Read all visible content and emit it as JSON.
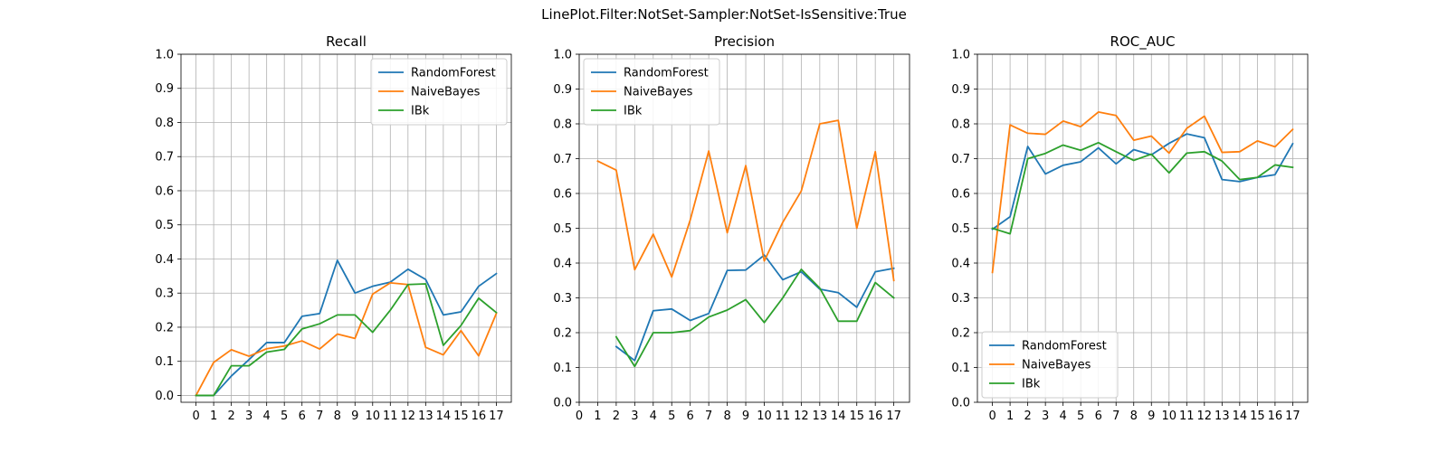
{
  "figure": {
    "suptitle": "LinePlot.Filter:NotSet-Sampler:NotSet-IsSensitive:True"
  },
  "colors": {
    "RandomForest": "#1f77b4",
    "NaiveBayes": "#ff7f0e",
    "IBk": "#2ca02c"
  },
  "chart_data": [
    {
      "type": "line",
      "title": "Recall",
      "xlabel": "",
      "ylabel": "",
      "xlim": [
        -0.85,
        17.85
      ],
      "ylim": [
        -0.02,
        1.0
      ],
      "xticks": [
        0,
        1,
        2,
        3,
        4,
        5,
        6,
        7,
        8,
        9,
        10,
        11,
        12,
        13,
        14,
        15,
        16,
        17
      ],
      "yticks": [
        0.0,
        0.1,
        0.2,
        0.3,
        0.4,
        0.5,
        0.6,
        0.7,
        0.8,
        0.9,
        1.0
      ],
      "ytick_labels": [
        "0.0",
        "0.1",
        "0.2",
        "0.3",
        "0.4",
        "0.5",
        "0.6",
        "0.7",
        "0.8",
        "0.9",
        "1.0"
      ],
      "grid": true,
      "legend": "upper-right",
      "x": [
        0,
        1,
        2,
        3,
        4,
        5,
        6,
        7,
        8,
        9,
        10,
        11,
        12,
        13,
        14,
        15,
        16,
        17
      ],
      "series": [
        {
          "name": "RandomForest",
          "values": [
            0.0,
            0.0,
            0.057,
            0.105,
            0.155,
            0.155,
            0.232,
            0.24,
            0.396,
            0.3,
            0.32,
            0.332,
            0.37,
            0.34,
            0.236,
            0.245,
            0.32,
            0.357
          ]
        },
        {
          "name": "NaiveBayes",
          "values": [
            0.0,
            0.097,
            0.134,
            0.115,
            0.137,
            0.145,
            0.16,
            0.136,
            0.18,
            0.167,
            0.297,
            0.33,
            0.325,
            0.141,
            0.119,
            0.19,
            0.116,
            0.24
          ]
        },
        {
          "name": "IBk",
          "values": [
            0.0,
            0.0,
            0.087,
            0.087,
            0.127,
            0.135,
            0.195,
            0.21,
            0.236,
            0.236,
            0.185,
            0.25,
            0.325,
            0.327,
            0.147,
            0.205,
            0.285,
            0.243
          ]
        }
      ]
    },
    {
      "type": "line",
      "title": "Precision",
      "xlabel": "",
      "ylabel": "",
      "xlim": [
        0,
        17.85
      ],
      "ylim": [
        0.0,
        1.0
      ],
      "xticks": [
        0,
        1,
        2,
        3,
        4,
        5,
        6,
        7,
        8,
        9,
        10,
        11,
        12,
        13,
        14,
        15,
        16,
        17
      ],
      "yticks": [
        0.0,
        0.1,
        0.2,
        0.3,
        0.4,
        0.5,
        0.6,
        0.7,
        0.8,
        0.9,
        1.0
      ],
      "ytick_labels": [
        "0.0",
        "0.1",
        "0.2",
        "0.3",
        "0.4",
        "0.5",
        "0.6",
        "0.7",
        "0.8",
        "0.9",
        "1.0"
      ],
      "grid": true,
      "legend": "upper-left",
      "x": [
        0,
        1,
        2,
        3,
        4,
        5,
        6,
        7,
        8,
        9,
        10,
        11,
        12,
        13,
        14,
        15,
        16,
        17
      ],
      "series": [
        {
          "name": "RandomForest",
          "values": [
            null,
            null,
            0.16,
            0.12,
            0.263,
            0.268,
            0.235,
            0.255,
            0.379,
            0.38,
            0.423,
            0.352,
            0.375,
            0.325,
            0.315,
            0.273,
            0.375,
            0.385
          ]
        },
        {
          "name": "NaiveBayes",
          "values": [
            null,
            0.693,
            0.667,
            0.381,
            0.483,
            0.36,
            0.524,
            0.722,
            0.487,
            0.68,
            0.406,
            0.517,
            0.607,
            0.8,
            0.81,
            0.5,
            0.72,
            0.35
          ]
        },
        {
          "name": "IBk",
          "values": [
            null,
            null,
            0.188,
            0.103,
            0.2,
            0.2,
            0.206,
            0.245,
            0.265,
            0.295,
            0.229,
            0.3,
            0.382,
            0.328,
            0.233,
            0.233,
            0.344,
            0.3
          ]
        }
      ]
    },
    {
      "type": "line",
      "title": "ROC_AUC",
      "xlabel": "",
      "ylabel": "",
      "xlim": [
        -0.85,
        17.85
      ],
      "ylim": [
        0.0,
        1.0
      ],
      "xticks": [
        0,
        1,
        2,
        3,
        4,
        5,
        6,
        7,
        8,
        9,
        10,
        11,
        12,
        13,
        14,
        15,
        16,
        17
      ],
      "yticks": [
        0.0,
        0.1,
        0.2,
        0.3,
        0.4,
        0.5,
        0.6,
        0.7,
        0.8,
        0.9,
        1.0
      ],
      "ytick_labels": [
        "0.0",
        "0.1",
        "0.2",
        "0.3",
        "0.4",
        "0.5",
        "0.6",
        "0.7",
        "0.8",
        "0.9",
        "1.0"
      ],
      "grid": true,
      "legend": "lower-left",
      "x": [
        0,
        1,
        2,
        3,
        4,
        5,
        6,
        7,
        8,
        9,
        10,
        11,
        12,
        13,
        14,
        15,
        16,
        17
      ],
      "series": [
        {
          "name": "RandomForest",
          "values": [
            0.497,
            0.533,
            0.735,
            0.656,
            0.681,
            0.691,
            0.731,
            0.685,
            0.726,
            0.711,
            0.744,
            0.771,
            0.76,
            0.64,
            0.634,
            0.646,
            0.654,
            0.743
          ]
        },
        {
          "name": "NaiveBayes",
          "values": [
            0.373,
            0.797,
            0.773,
            0.77,
            0.808,
            0.792,
            0.834,
            0.824,
            0.753,
            0.765,
            0.716,
            0.787,
            0.822,
            0.718,
            0.72,
            0.751,
            0.734,
            0.784
          ]
        },
        {
          "name": "IBk",
          "values": [
            0.5,
            0.484,
            0.7,
            0.715,
            0.739,
            0.724,
            0.746,
            0.72,
            0.695,
            0.713,
            0.659,
            0.716,
            0.72,
            0.693,
            0.64,
            0.646,
            0.682,
            0.675
          ]
        }
      ]
    }
  ]
}
